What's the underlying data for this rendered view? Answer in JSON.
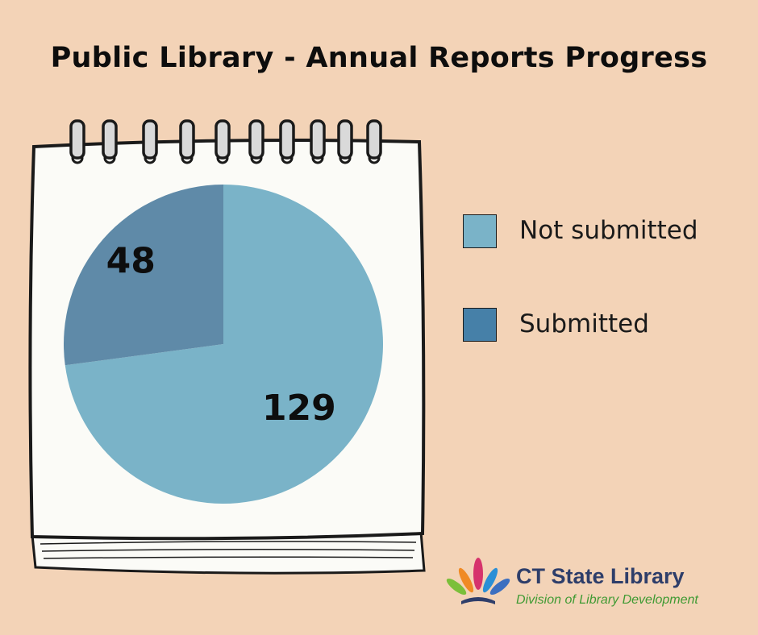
{
  "title": "Public Library - Annual Reports Progress",
  "chart_data": {
    "type": "pie",
    "title": "Public Library - Annual Reports Progress",
    "categories": [
      "Not submitted",
      "Submitted"
    ],
    "values": [
      129,
      48
    ],
    "data_labels": [
      "129",
      "48"
    ],
    "colors": [
      "#7ab3c8",
      "#5f8aa8"
    ],
    "legend": {
      "placement": "right",
      "entries": [
        {
          "label": "Not submitted",
          "color": "#7ab3c8"
        },
        {
          "label": "Submitted",
          "color": "#4680a8"
        }
      ]
    }
  },
  "logo": {
    "name": "CT State Library",
    "subtitle": "Division of Library Development"
  }
}
